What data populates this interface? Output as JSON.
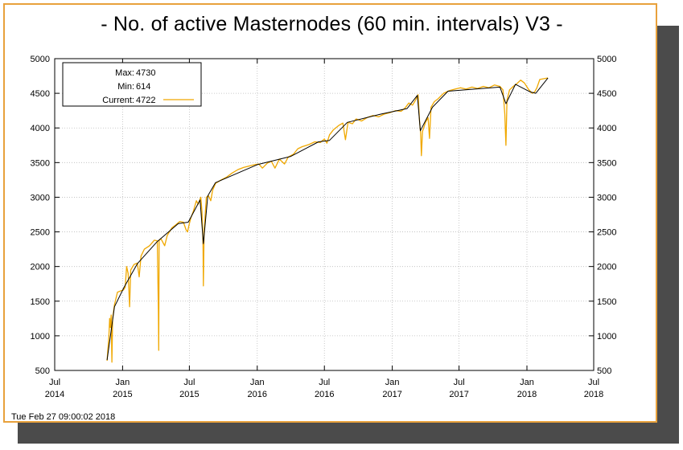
{
  "header": {
    "title": "- No. of active Masternodes (60 min. intervals) V3 -"
  },
  "footer": {
    "timestamp": "Tue Feb 27 09:00:02 2018"
  },
  "legend": {
    "max_label": "Max:",
    "max_value": "4730",
    "min_label": "Min:",
    "min_value": "614",
    "current_label": "Current:",
    "current_value": "4722"
  },
  "colors": {
    "series": "#f0a800",
    "trend": "#000000",
    "frame": "#e8a13c",
    "grid": "#bbbbbb"
  },
  "chart_data": {
    "type": "line",
    "title": "- No. of active Masternodes (60 min. intervals) V3 -",
    "xlim": [
      "2014-07-01",
      "2018-07-01"
    ],
    "ylim": [
      500,
      5000
    ],
    "grid": true,
    "legend_position": "top-left",
    "y_ticks": [
      500,
      1000,
      1500,
      2000,
      2500,
      3000,
      3500,
      4000,
      4500,
      5000
    ],
    "x_ticks": [
      {
        "date": "2014-07-01",
        "month": "Jul",
        "year": "2014"
      },
      {
        "date": "2015-01-01",
        "month": "Jan",
        "year": "2015"
      },
      {
        "date": "2015-07-01",
        "month": "Jul",
        "year": "2015"
      },
      {
        "date": "2016-01-01",
        "month": "Jan",
        "year": "2016"
      },
      {
        "date": "2016-07-01",
        "month": "Jul",
        "year": "2016"
      },
      {
        "date": "2017-01-01",
        "month": "Jan",
        "year": "2017"
      },
      {
        "date": "2017-07-01",
        "month": "Jul",
        "year": "2017"
      },
      {
        "date": "2018-01-01",
        "month": "Jan",
        "year": "2018"
      },
      {
        "date": "2018-07-01",
        "month": "Jul",
        "year": "2018"
      }
    ],
    "series": [
      {
        "role": "hourly",
        "points": [
          [
            "2014-11-20",
            640
          ],
          [
            "2014-11-25",
            1000
          ],
          [
            "2014-11-27",
            1250
          ],
          [
            "2014-11-29",
            1120
          ],
          [
            "2014-12-01",
            1300
          ],
          [
            "2014-12-03",
            620
          ],
          [
            "2014-12-05",
            1250
          ],
          [
            "2014-12-10",
            1450
          ],
          [
            "2014-12-18",
            1630
          ],
          [
            "2014-12-28",
            1650
          ],
          [
            "2015-01-03",
            1660
          ],
          [
            "2015-01-08",
            1700
          ],
          [
            "2015-01-12",
            2000
          ],
          [
            "2015-01-16",
            1900
          ],
          [
            "2015-01-20",
            1420
          ],
          [
            "2015-01-23",
            1950
          ],
          [
            "2015-02-01",
            2030
          ],
          [
            "2015-02-10",
            2050
          ],
          [
            "2015-02-15",
            1850
          ],
          [
            "2015-02-20",
            2150
          ],
          [
            "2015-03-01",
            2250
          ],
          [
            "2015-03-15",
            2300
          ],
          [
            "2015-03-28",
            2380
          ],
          [
            "2015-04-05",
            2370
          ],
          [
            "2015-04-08",
            1350
          ],
          [
            "2015-04-09",
            790
          ],
          [
            "2015-04-10",
            2380
          ],
          [
            "2015-04-15",
            2400
          ],
          [
            "2015-04-25",
            2300
          ],
          [
            "2015-05-02",
            2450
          ],
          [
            "2015-05-15",
            2560
          ],
          [
            "2015-05-25",
            2600
          ],
          [
            "2015-06-05",
            2650
          ],
          [
            "2015-06-15",
            2640
          ],
          [
            "2015-06-22",
            2530
          ],
          [
            "2015-06-26",
            2500
          ],
          [
            "2015-07-01",
            2620
          ],
          [
            "2015-07-05",
            2700
          ],
          [
            "2015-07-12",
            2800
          ],
          [
            "2015-07-20",
            2950
          ],
          [
            "2015-07-25",
            2900
          ],
          [
            "2015-08-01",
            3000
          ],
          [
            "2015-08-04",
            2800
          ],
          [
            "2015-08-07",
            2300
          ],
          [
            "2015-08-08",
            1720
          ],
          [
            "2015-08-10",
            2500
          ],
          [
            "2015-08-16",
            3000
          ],
          [
            "2015-08-22",
            3020
          ],
          [
            "2015-08-28",
            2950
          ],
          [
            "2015-09-02",
            3100
          ],
          [
            "2015-09-10",
            3200
          ],
          [
            "2015-09-25",
            3250
          ],
          [
            "2015-10-10",
            3290
          ],
          [
            "2015-10-25",
            3350
          ],
          [
            "2015-11-10",
            3400
          ],
          [
            "2015-11-25",
            3430
          ],
          [
            "2015-12-10",
            3450
          ],
          [
            "2015-12-25",
            3470
          ],
          [
            "2016-01-05",
            3480
          ],
          [
            "2016-01-15",
            3420
          ],
          [
            "2016-01-28",
            3490
          ],
          [
            "2016-02-08",
            3520
          ],
          [
            "2016-02-18",
            3420
          ],
          [
            "2016-03-01",
            3550
          ],
          [
            "2016-03-15",
            3480
          ],
          [
            "2016-03-25",
            3580
          ],
          [
            "2016-04-08",
            3620
          ],
          [
            "2016-04-20",
            3700
          ],
          [
            "2016-05-02",
            3730
          ],
          [
            "2016-05-20",
            3760
          ],
          [
            "2016-06-05",
            3800
          ],
          [
            "2016-06-20",
            3790
          ],
          [
            "2016-07-01",
            3840
          ],
          [
            "2016-07-08",
            3780
          ],
          [
            "2016-07-15",
            3900
          ],
          [
            "2016-07-25",
            3970
          ],
          [
            "2016-08-10",
            4040
          ],
          [
            "2016-08-20",
            4070
          ],
          [
            "2016-08-27",
            3830
          ],
          [
            "2016-09-03",
            4080
          ],
          [
            "2016-09-15",
            4060
          ],
          [
            "2016-09-25",
            4130
          ],
          [
            "2016-10-10",
            4100
          ],
          [
            "2016-10-25",
            4150
          ],
          [
            "2016-11-10",
            4180
          ],
          [
            "2016-11-25",
            4160
          ],
          [
            "2016-12-10",
            4200
          ],
          [
            "2016-12-25",
            4220
          ],
          [
            "2017-01-10",
            4250
          ],
          [
            "2017-01-25",
            4240
          ],
          [
            "2017-02-05",
            4290
          ],
          [
            "2017-02-15",
            4360
          ],
          [
            "2017-02-25",
            4330
          ],
          [
            "2017-03-05",
            4400
          ],
          [
            "2017-03-12",
            4480
          ],
          [
            "2017-03-16",
            4100
          ],
          [
            "2017-03-19",
            3920
          ],
          [
            "2017-03-21",
            3600
          ],
          [
            "2017-03-24",
            3950
          ],
          [
            "2017-04-01",
            4080
          ],
          [
            "2017-04-08",
            4150
          ],
          [
            "2017-04-12",
            3850
          ],
          [
            "2017-04-16",
            4300
          ],
          [
            "2017-04-25",
            4380
          ],
          [
            "2017-05-05",
            4420
          ],
          [
            "2017-05-20",
            4500
          ],
          [
            "2017-06-05",
            4540
          ],
          [
            "2017-06-20",
            4560
          ],
          [
            "2017-07-05",
            4580
          ],
          [
            "2017-07-20",
            4560
          ],
          [
            "2017-08-05",
            4590
          ],
          [
            "2017-08-20",
            4570
          ],
          [
            "2017-09-05",
            4600
          ],
          [
            "2017-09-20",
            4580
          ],
          [
            "2017-10-05",
            4620
          ],
          [
            "2017-10-20",
            4600
          ],
          [
            "2017-10-28",
            4550
          ],
          [
            "2017-11-02",
            4200
          ],
          [
            "2017-11-05",
            3750
          ],
          [
            "2017-11-08",
            4400
          ],
          [
            "2017-11-15",
            4550
          ],
          [
            "2017-11-25",
            4600
          ],
          [
            "2017-12-05",
            4640
          ],
          [
            "2017-12-15",
            4690
          ],
          [
            "2017-12-25",
            4650
          ],
          [
            "2018-01-05",
            4560
          ],
          [
            "2018-01-15",
            4500
          ],
          [
            "2018-01-22",
            4520
          ],
          [
            "2018-01-28",
            4580
          ],
          [
            "2018-02-05",
            4700
          ],
          [
            "2018-02-15",
            4710
          ],
          [
            "2018-02-27",
            4722
          ]
        ]
      },
      {
        "role": "trend",
        "points": [
          [
            "2014-11-20",
            650
          ],
          [
            "2014-12-10",
            1420
          ],
          [
            "2015-01-05",
            1700
          ],
          [
            "2015-02-10",
            2040
          ],
          [
            "2015-04-05",
            2360
          ],
          [
            "2015-06-01",
            2620
          ],
          [
            "2015-06-28",
            2640
          ],
          [
            "2015-07-30",
            2960
          ],
          [
            "2015-08-08",
            2330
          ],
          [
            "2015-08-20",
            3020
          ],
          [
            "2015-09-10",
            3210
          ],
          [
            "2016-01-01",
            3470
          ],
          [
            "2016-04-01",
            3590
          ],
          [
            "2016-06-15",
            3800
          ],
          [
            "2016-07-15",
            3820
          ],
          [
            "2016-09-01",
            4080
          ],
          [
            "2016-12-01",
            4200
          ],
          [
            "2017-02-10",
            4280
          ],
          [
            "2017-03-10",
            4470
          ],
          [
            "2017-03-18",
            3960
          ],
          [
            "2017-04-20",
            4300
          ],
          [
            "2017-06-01",
            4530
          ],
          [
            "2017-10-20",
            4590
          ],
          [
            "2017-11-05",
            4350
          ],
          [
            "2017-12-01",
            4630
          ],
          [
            "2018-01-10",
            4520
          ],
          [
            "2018-01-25",
            4500
          ],
          [
            "2018-02-27",
            4720
          ]
        ]
      }
    ]
  }
}
